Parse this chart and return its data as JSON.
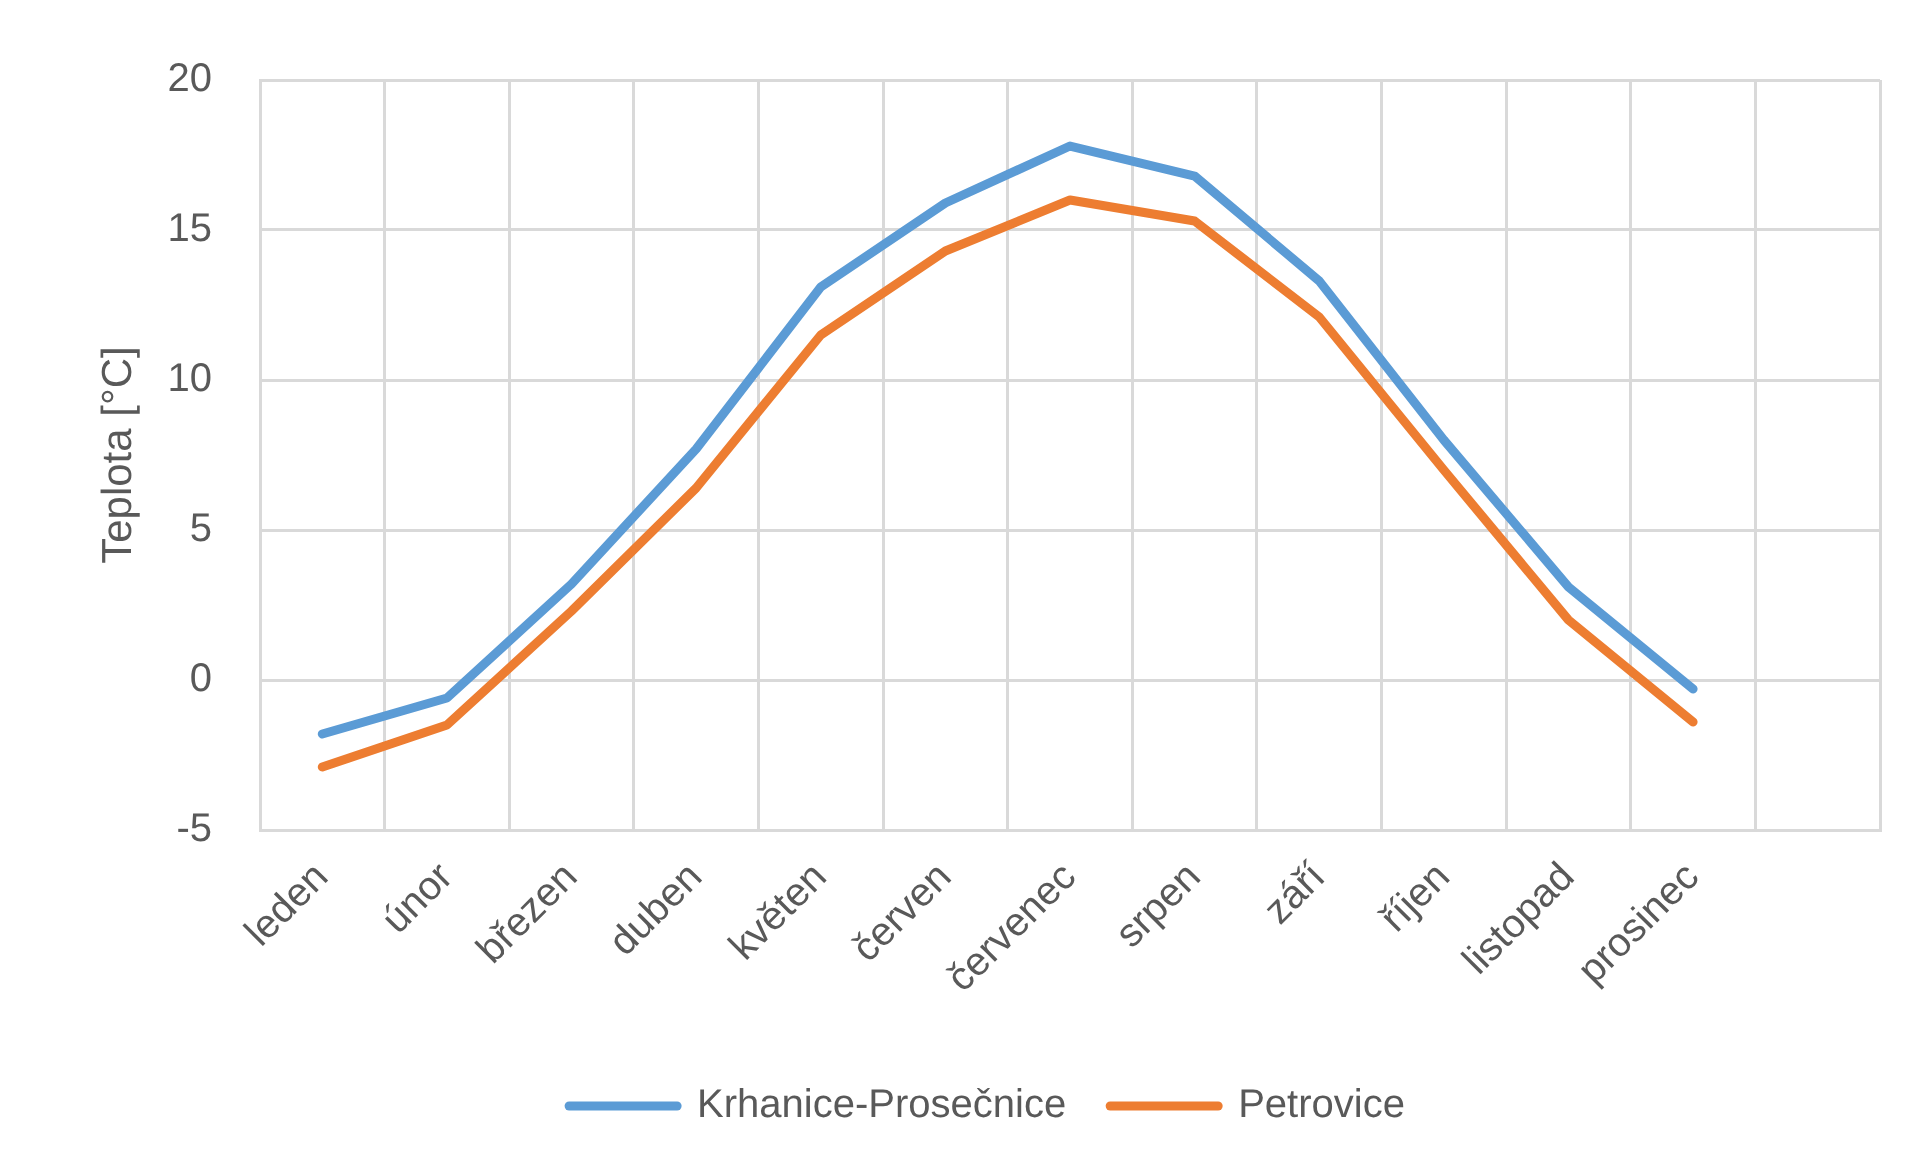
{
  "chart_data": {
    "type": "line",
    "ylabel": "Teplota [°C]",
    "categories": [
      "leden",
      "únor",
      "březen",
      "duben",
      "květen",
      "červen",
      "červenec",
      "srpen",
      "září",
      "říjen",
      "listopad",
      "prosinec",
      null
    ],
    "series": [
      {
        "name": "Krhanice-Prosečnice",
        "color": "#5b9bd5",
        "values": [
          -1.8,
          -0.6,
          3.2,
          7.7,
          13.1,
          15.9,
          17.8,
          16.8,
          13.3,
          8.0,
          3.1,
          -0.3,
          null
        ]
      },
      {
        "name": "Petrovice",
        "color": "#ed7d31",
        "values": [
          -2.9,
          -1.5,
          2.3,
          6.4,
          11.5,
          14.3,
          16.0,
          15.3,
          12.1,
          7.0,
          2.0,
          -1.4,
          null
        ]
      }
    ],
    "ylim": [
      -5,
      20
    ],
    "yticks": [
      -5,
      0,
      5,
      10,
      15,
      20
    ],
    "grid": true,
    "legend": "bottom"
  }
}
